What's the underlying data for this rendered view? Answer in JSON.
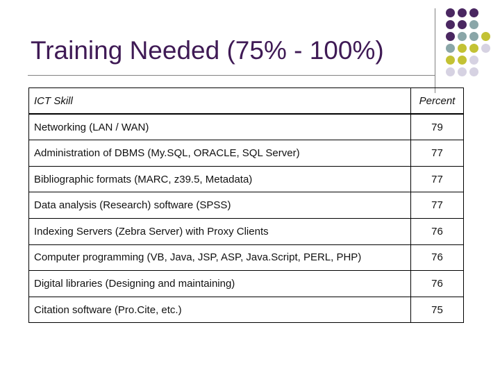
{
  "slide": {
    "title": "Training Needed (75% - 100%)"
  },
  "table": {
    "headers": [
      "ICT Skill",
      "Percent"
    ],
    "rows": [
      {
        "skill": "Networking (LAN / WAN)",
        "percent": "79"
      },
      {
        "skill": "Administration of DBMS (My.SQL, ORACLE, SQL Server)",
        "percent": "77"
      },
      {
        "skill": "Bibliographic formats (MARC, z39.5, Metadata)",
        "percent": "77"
      },
      {
        "skill": "Data analysis (Research) software (SPSS)",
        "percent": "77"
      },
      {
        "skill": "Indexing Servers (Zebra Server) with Proxy Clients",
        "percent": "76"
      },
      {
        "skill": "Computer programming (VB, Java, JSP, ASP, Java.Script, PERL, PHP)",
        "percent": "76"
      },
      {
        "skill": "Digital libraries (Designing and maintaining)",
        "percent": "76"
      },
      {
        "skill": "Citation software (Pro.Cite, etc.)",
        "percent": "75"
      }
    ]
  },
  "decoration": {
    "dot_colors": {
      "purple": "#4a2761",
      "teal": "#8aa6a8",
      "olive": "#c3c234",
      "lavender": "#d6d2e2"
    },
    "title_color": "#3f1a55"
  }
}
